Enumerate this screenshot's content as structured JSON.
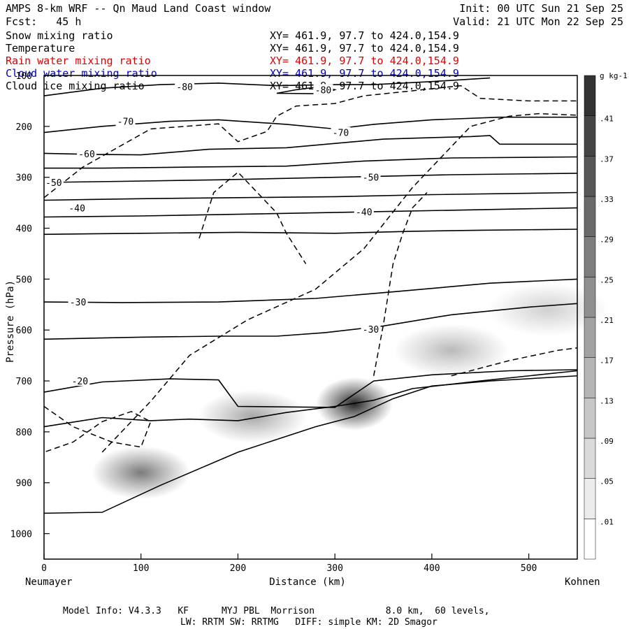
{
  "header": {
    "title": "AMPS 8-km WRF -- Qn Maud Land Coast window",
    "fcst": "Fcst:   45 h",
    "init": "Init: 00 UTC Sun 21 Sep 25",
    "valid": "Valid: 21 UTC Mon 22 Sep 25"
  },
  "legend": [
    {
      "name": "Snow mixing ratio",
      "xy": "XY= 461.9, 97.7 to 424.0,154.9",
      "color": "#000000"
    },
    {
      "name": "Temperature",
      "xy": "XY= 461.9, 97.7 to 424.0,154.9",
      "color": "#000000"
    },
    {
      "name": "Rain water mixing ratio",
      "xy": "XY= 461.9, 97.7 to 424.0,154.9",
      "color": "#e00000"
    },
    {
      "name": "Cloud water mixing ratio",
      "xy": "XY= 461.9, 97.7 to 424.0,154.9",
      "color": "#0000c0"
    },
    {
      "name": "Cloud ice mixing ratio",
      "xy": "XY= 461.9, 97.7 to 424.0,154.9",
      "color": "#000000"
    }
  ],
  "footer": {
    "line1": "Model Info: V4.3.3   KF      MYJ PBL  Morrison             8.0 km,  60 levels,",
    "line2": "LW: RRTM SW: RRTMG   DIFF: simple KM: 2D Smagor"
  },
  "chart_data": {
    "type": "cross-section",
    "xlabel": "Distance (km)",
    "ylabel": "Pressure (hPa)",
    "x_endpoints": {
      "left": "Neumayer",
      "right": "Kohnen"
    },
    "xlim": [
      0,
      550
    ],
    "ylim": [
      1050,
      100
    ],
    "x_ticks": [
      0,
      100,
      200,
      300,
      400,
      500
    ],
    "y_ticks": [
      1000,
      900,
      800,
      700,
      600,
      500,
      400,
      300,
      200,
      100
    ],
    "colorbar": {
      "unit": "g kg-1",
      "ticks": [
        ".01",
        ".05",
        ".09",
        ".13",
        ".17",
        ".21",
        ".25",
        ".29",
        ".33",
        ".37",
        ".41"
      ]
    },
    "temperature_contours": [
      {
        "label": "-80",
        "km": 145,
        "hPa": 122,
        "points": [
          [
            0,
            140
          ],
          [
            60,
            125
          ],
          [
            120,
            118
          ],
          [
            180,
            115
          ],
          [
            240,
            120
          ],
          [
            300,
            118
          ],
          [
            340,
            118
          ],
          [
            400,
            112
          ],
          [
            460,
            105
          ]
        ]
      },
      {
        "label": "-80",
        "km": 288,
        "hPa": 128,
        "points": [
          [
            240,
            135
          ],
          [
            260,
            128
          ],
          [
            285,
            122
          ],
          [
            300,
            128
          ],
          [
            290,
            136
          ],
          [
            240,
            135
          ]
        ]
      },
      {
        "label": "-70",
        "km": 84,
        "hPa": 190,
        "points": [
          [
            0,
            212
          ],
          [
            60,
            200
          ],
          [
            130,
            190
          ],
          [
            180,
            187
          ],
          [
            250,
            196
          ],
          [
            300,
            205
          ],
          [
            340,
            196
          ],
          [
            400,
            187
          ],
          [
            470,
            182
          ],
          [
            550,
            182
          ]
        ]
      },
      {
        "label": "-70",
        "km": 306,
        "hPa": 212,
        "points": [
          [
            0,
            253
          ],
          [
            50,
            255
          ],
          [
            100,
            256
          ],
          [
            170,
            245
          ],
          [
            250,
            242
          ],
          [
            350,
            225
          ],
          [
            400,
            222
          ],
          [
            440,
            220
          ],
          [
            460,
            218
          ],
          [
            470,
            235
          ],
          [
            550,
            235
          ]
        ]
      },
      {
        "label": "-60",
        "km": 44,
        "hPa": 254,
        "points": [
          [
            0,
            282
          ],
          [
            60,
            282
          ],
          [
            150,
            280
          ],
          [
            250,
            278
          ],
          [
            330,
            268
          ],
          [
            420,
            262
          ],
          [
            550,
            260
          ]
        ]
      },
      {
        "label": "-50",
        "km": 10,
        "hPa": 310,
        "points": [
          [
            0,
            310
          ],
          [
            80,
            308
          ],
          [
            180,
            305
          ],
          [
            300,
            300
          ],
          [
            420,
            295
          ],
          [
            550,
            292
          ]
        ]
      },
      {
        "label": "-50",
        "km": 337,
        "hPa": 300,
        "points": [
          [
            0,
            345
          ],
          [
            100,
            342
          ],
          [
            200,
            340
          ],
          [
            300,
            338
          ],
          [
            400,
            334
          ],
          [
            550,
            330
          ]
        ]
      },
      {
        "label": "-40",
        "km": 34,
        "hPa": 360,
        "points": [
          [
            0,
            378
          ],
          [
            100,
            376
          ],
          [
            220,
            372
          ],
          [
            330,
            368
          ],
          [
            440,
            364
          ],
          [
            550,
            360
          ]
        ]
      },
      {
        "label": "-40",
        "km": 330,
        "hPa": 368,
        "points": [
          [
            0,
            412
          ],
          [
            100,
            410
          ],
          [
            200,
            408
          ],
          [
            300,
            410
          ],
          [
            380,
            406
          ],
          [
            450,
            404
          ],
          [
            550,
            402
          ]
        ]
      },
      {
        "label": "-30",
        "km": 35,
        "hPa": 545,
        "points": [
          [
            0,
            545
          ],
          [
            80,
            546
          ],
          [
            180,
            545
          ],
          [
            280,
            538
          ],
          [
            360,
            525
          ],
          [
            460,
            508
          ],
          [
            550,
            500
          ]
        ]
      },
      {
        "label": "-30",
        "km": 337,
        "hPa": 598,
        "points": [
          [
            0,
            618
          ],
          [
            100,
            614
          ],
          [
            180,
            612
          ],
          [
            240,
            612
          ],
          [
            290,
            605
          ],
          [
            350,
            592
          ],
          [
            420,
            570
          ],
          [
            500,
            555
          ],
          [
            550,
            548
          ]
        ]
      },
      {
        "label": "-20",
        "km": 37,
        "hPa": 700,
        "points": [
          [
            0,
            722
          ],
          [
            60,
            702
          ],
          [
            130,
            696
          ],
          [
            180,
            698
          ],
          [
            200,
            750
          ],
          [
            300,
            752
          ],
          [
            340,
            700
          ],
          [
            400,
            688
          ],
          [
            480,
            680
          ],
          [
            550,
            678
          ]
        ]
      },
      {
        "label": "",
        "km": 0,
        "hPa": 0,
        "points": [
          [
            0,
            790
          ],
          [
            60,
            772
          ],
          [
            110,
            778
          ],
          [
            150,
            775
          ],
          [
            200,
            778
          ],
          [
            250,
            762
          ],
          [
            300,
            750
          ],
          [
            340,
            738
          ],
          [
            380,
            715
          ],
          [
            450,
            700
          ],
          [
            550,
            680
          ]
        ]
      }
    ],
    "snow_contours_dashed": [
      [
        [
          0,
          340
        ],
        [
          40,
          280
        ],
        [
          110,
          205
        ],
        [
          180,
          195
        ],
        [
          200,
          230
        ],
        [
          230,
          210
        ],
        [
          240,
          180
        ],
        [
          260,
          160
        ],
        [
          300,
          155
        ],
        [
          330,
          140
        ],
        [
          380,
          130
        ],
        [
          430,
          120
        ],
        [
          450,
          145
        ],
        [
          500,
          150
        ],
        [
          550,
          150
        ]
      ],
      [
        [
          60,
          840
        ],
        [
          110,
          740
        ],
        [
          150,
          650
        ],
        [
          210,
          580
        ],
        [
          280,
          520
        ],
        [
          330,
          440
        ],
        [
          380,
          320
        ],
        [
          440,
          200
        ],
        [
          480,
          180
        ],
        [
          510,
          175
        ],
        [
          550,
          178
        ]
      ],
      [
        [
          160,
          420
        ],
        [
          175,
          330
        ],
        [
          200,
          290
        ],
        [
          220,
          330
        ],
        [
          240,
          370
        ],
        [
          250,
          410
        ],
        [
          270,
          470
        ]
      ],
      [
        [
          340,
          690
        ],
        [
          350,
          590
        ],
        [
          360,
          470
        ],
        [
          370,
          410
        ],
        [
          380,
          360
        ],
        [
          395,
          330
        ]
      ],
      [
        [
          420,
          690
        ],
        [
          480,
          660
        ],
        [
          530,
          640
        ],
        [
          550,
          635
        ]
      ],
      [
        [
          0,
          750
        ],
        [
          30,
          790
        ],
        [
          70,
          820
        ],
        [
          100,
          830
        ],
        [
          110,
          780
        ],
        [
          90,
          760
        ],
        [
          60,
          780
        ],
        [
          30,
          820
        ],
        [
          0,
          840
        ]
      ]
    ],
    "shading_blobs": [
      {
        "km": 100,
        "hPa": 880,
        "peak": 0.25
      },
      {
        "km": 215,
        "hPa": 770,
        "peak": 0.17
      },
      {
        "km": 320,
        "hPa": 745,
        "peak": 0.41
      },
      {
        "km": 420,
        "hPa": 640,
        "peak": 0.13
      },
      {
        "km": 520,
        "hPa": 560,
        "peak": 0.09
      }
    ],
    "terrain_surface": [
      [
        0,
        960
      ],
      [
        60,
        958
      ],
      [
        120,
        905
      ],
      [
        200,
        840
      ],
      [
        280,
        790
      ],
      [
        320,
        770
      ],
      [
        360,
        735
      ],
      [
        400,
        710
      ],
      [
        460,
        700
      ],
      [
        550,
        690
      ]
    ]
  }
}
